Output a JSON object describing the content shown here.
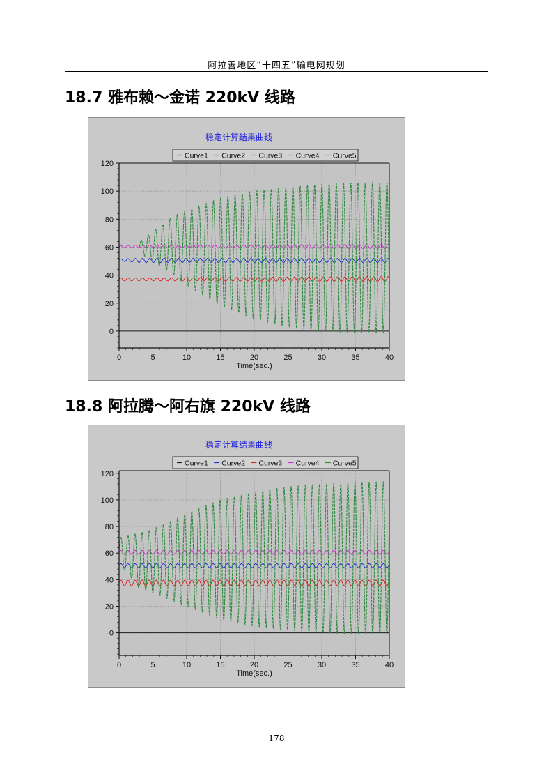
{
  "header": {
    "title": "阿拉善地区“十四五”输电网规划"
  },
  "sections": [
    {
      "number": "18.7",
      "title": "雅布赖～金诺 220kV 线路"
    },
    {
      "number": "18.8",
      "title": "阿拉腾～阿右旗 220kV 线路"
    }
  ],
  "footer": {
    "page_number": "178"
  },
  "chart_data": [
    {
      "type": "line",
      "title": "稳定计算结果曲线",
      "xlabel": "Time(sec.)",
      "ylabel": "",
      "xlim": [
        0,
        40
      ],
      "ylim": [
        -12,
        120
      ],
      "x_ticks": [
        0,
        5,
        10,
        15,
        20,
        25,
        30,
        35,
        40
      ],
      "y_ticks": [
        0,
        20,
        40,
        60,
        80,
        100,
        120
      ],
      "grid": true,
      "legend": "top-center",
      "series": [
        {
          "name": "Curve1",
          "color": "#1a1a1a",
          "t": [
            0,
            40
          ],
          "min": [
            0,
            0
          ],
          "max": [
            0,
            0
          ],
          "period": 1.0
        },
        {
          "name": "Curve2",
          "color": "#2233cc",
          "t": [
            0,
            3,
            40
          ],
          "min": [
            50,
            49,
            49
          ],
          "max": [
            51.5,
            52,
            52
          ],
          "period": 1.07
        },
        {
          "name": "Curve3",
          "color": "#dd2222",
          "t": [
            0,
            3,
            40
          ],
          "min": [
            36,
            36,
            35.5
          ],
          "max": [
            38,
            38,
            39
          ],
          "period": 1.07
        },
        {
          "name": "Curve4",
          "color": "#cc33cc",
          "t": [
            0,
            3,
            40
          ],
          "min": [
            59.5,
            59.5,
            59
          ],
          "max": [
            61,
            61.5,
            62
          ],
          "period": 1.07
        },
        {
          "name": "Curve5",
          "color": "#2e8b3c",
          "t": [
            3,
            5,
            8,
            10,
            15,
            20,
            25,
            30,
            35,
            40
          ],
          "min": [
            56,
            50,
            40,
            33,
            18,
            9,
            3,
            0,
            -1,
            -1
          ],
          "max": [
            64,
            71,
            82,
            86,
            95,
            100,
            103,
            105,
            106,
            106
          ],
          "period": 1.07
        }
      ]
    },
    {
      "type": "line",
      "title": "稳定计算结果曲线",
      "xlabel": "Time(sec.)",
      "ylabel": "",
      "xlim": [
        0,
        40
      ],
      "ylim": [
        -17,
        122
      ],
      "x_ticks": [
        0,
        5,
        10,
        15,
        20,
        25,
        30,
        35,
        40
      ],
      "y_ticks": [
        0,
        20,
        40,
        60,
        80,
        100,
        120
      ],
      "grid": true,
      "legend": "top-center",
      "series": [
        {
          "name": "Curve1",
          "color": "#1a1a1a",
          "t": [
            0,
            40
          ],
          "min": [
            0,
            0
          ],
          "max": [
            0,
            0
          ],
          "period": 1.0
        },
        {
          "name": "Curve2",
          "color": "#2233cc",
          "t": [
            0,
            40
          ],
          "min": [
            49,
            49
          ],
          "max": [
            52,
            52
          ],
          "period": 1.05
        },
        {
          "name": "Curve3",
          "color": "#dd2222",
          "t": [
            0,
            40
          ],
          "min": [
            35.5,
            35.5
          ],
          "max": [
            39.5,
            39.5
          ],
          "period": 1.05
        },
        {
          "name": "Curve4",
          "color": "#cc33cc",
          "t": [
            0,
            40
          ],
          "min": [
            59,
            59
          ],
          "max": [
            62,
            62
          ],
          "period": 1.05
        },
        {
          "name": "Curve5",
          "color": "#2e8b3c",
          "t": [
            0,
            3,
            5,
            10,
            15,
            20,
            25,
            30,
            35,
            40
          ],
          "min": [
            52,
            33,
            30,
            20,
            10,
            5,
            2,
            0,
            -1,
            -1
          ],
          "max": [
            72,
            75,
            78,
            90,
            100,
            106,
            110,
            112,
            113,
            114
          ],
          "period": 1.05
        }
      ]
    }
  ]
}
